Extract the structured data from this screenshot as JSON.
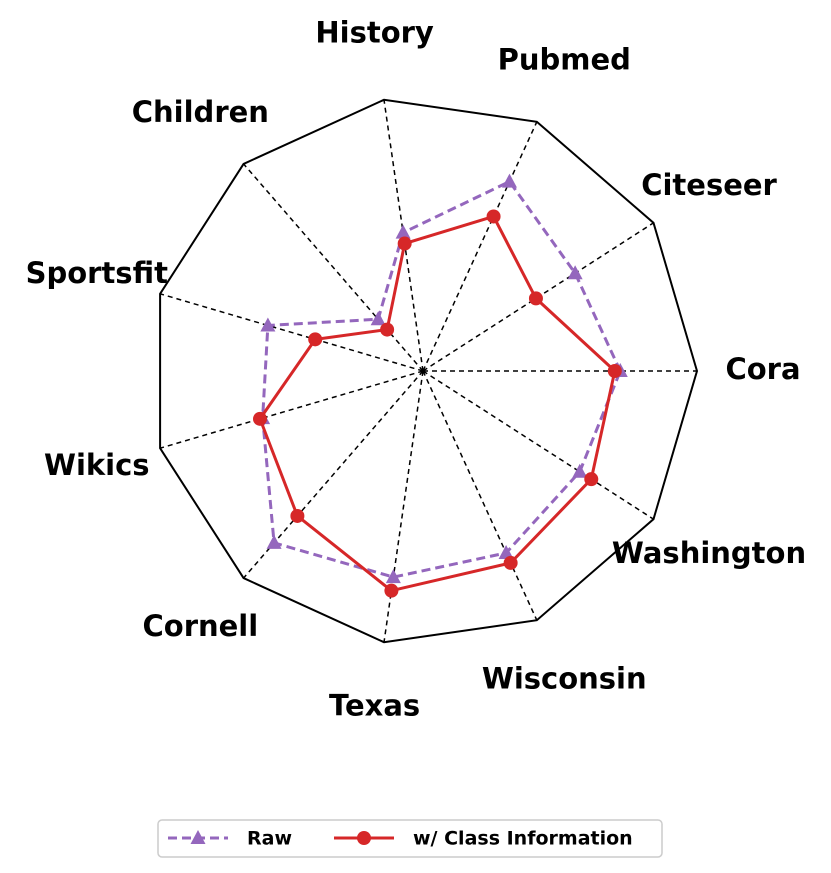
{
  "chart_data": {
    "type": "radar",
    "categories": [
      "Cora",
      "Citeseer",
      "Pubmed",
      "History",
      "Children",
      "Sportsfit",
      "Wikics",
      "Cornell",
      "Texas",
      "Wisconsin",
      "Washington"
    ],
    "ylim": [
      0,
      1
    ],
    "series": [
      {
        "name": "Raw",
        "color": "#9467bd",
        "marker": "triangle",
        "dashed": true,
        "values": [
          0.72,
          0.66,
          0.76,
          0.51,
          0.25,
          0.59,
          0.61,
          0.83,
          0.76,
          0.73,
          0.68
        ]
      },
      {
        "name": "w/ Class Information",
        "color": "#d62728",
        "marker": "circle",
        "dashed": false,
        "values": [
          0.7,
          0.49,
          0.62,
          0.47,
          0.2,
          0.41,
          0.62,
          0.7,
          0.81,
          0.77,
          0.73
        ]
      }
    ],
    "legend": "bottom"
  }
}
